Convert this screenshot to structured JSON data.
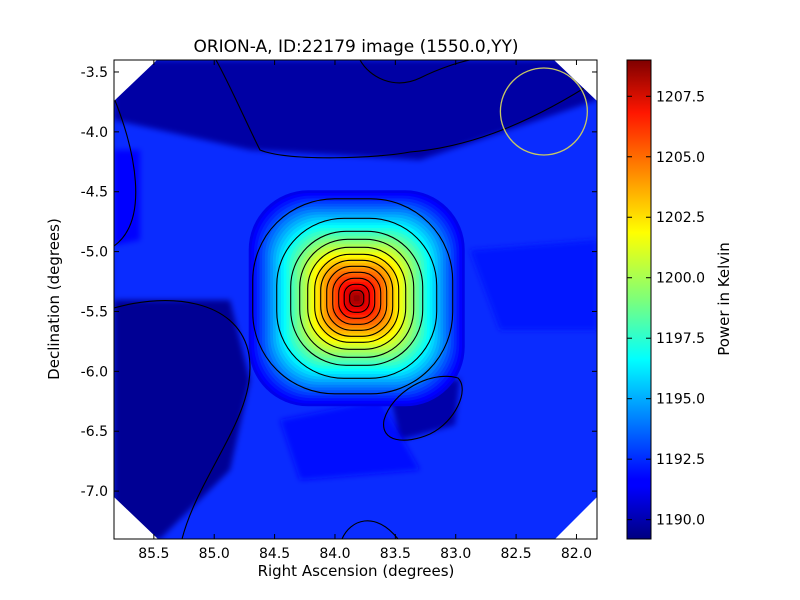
{
  "chart_data": {
    "type": "heatmap",
    "title": "ORION-A, ID:22179 image (1550.0,YY)",
    "xlabel": "Right Ascension (degrees)",
    "ylabel": "Declination (degrees)",
    "colorbar_label": "Power in Kelvin",
    "xlim": [
      85.83,
      81.83
    ],
    "ylim": [
      -7.4,
      -3.4
    ],
    "x_ticks": [
      {
        "value": 85.5,
        "label": "85.5"
      },
      {
        "value": 85.0,
        "label": "85.0"
      },
      {
        "value": 84.5,
        "label": "84.5"
      },
      {
        "value": 84.0,
        "label": "84.0"
      },
      {
        "value": 83.5,
        "label": "83.5"
      },
      {
        "value": 83.0,
        "label": "83.0"
      },
      {
        "value": 82.5,
        "label": "82.5"
      },
      {
        "value": 82.0,
        "label": "82.0"
      }
    ],
    "y_ticks": [
      {
        "value": -3.5,
        "label": "-3.5"
      },
      {
        "value": -4.0,
        "label": "-4.0"
      },
      {
        "value": -4.5,
        "label": "-4.5"
      },
      {
        "value": -5.0,
        "label": "-5.0"
      },
      {
        "value": -5.5,
        "label": "-5.5"
      },
      {
        "value": -6.0,
        "label": "-6.0"
      },
      {
        "value": -6.5,
        "label": "-6.5"
      },
      {
        "value": -7.0,
        "label": "-7.0"
      }
    ],
    "colorbar_range": [
      1189.2,
      1209.0
    ],
    "colorbar_ticks": [
      {
        "value": 1190.0,
        "label": "1190.0"
      },
      {
        "value": 1192.5,
        "label": "1192.5"
      },
      {
        "value": 1195.0,
        "label": "1195.0"
      },
      {
        "value": 1197.5,
        "label": "1197.5"
      },
      {
        "value": 1200.0,
        "label": "1200.0"
      },
      {
        "value": 1202.5,
        "label": "1202.5"
      },
      {
        "value": 1205.0,
        "label": "1205.0"
      },
      {
        "value": 1207.5,
        "label": "1207.5"
      }
    ],
    "colormap": "jet",
    "peak": {
      "ra": 83.82,
      "dec": -5.39,
      "value": 1208.5
    },
    "background_level": 1191.3,
    "beam_circle": {
      "ra": 82.27,
      "dec": -3.83,
      "radius_deg": 0.36,
      "color": "#c8c864"
    },
    "contours": "black",
    "grid": false
  }
}
